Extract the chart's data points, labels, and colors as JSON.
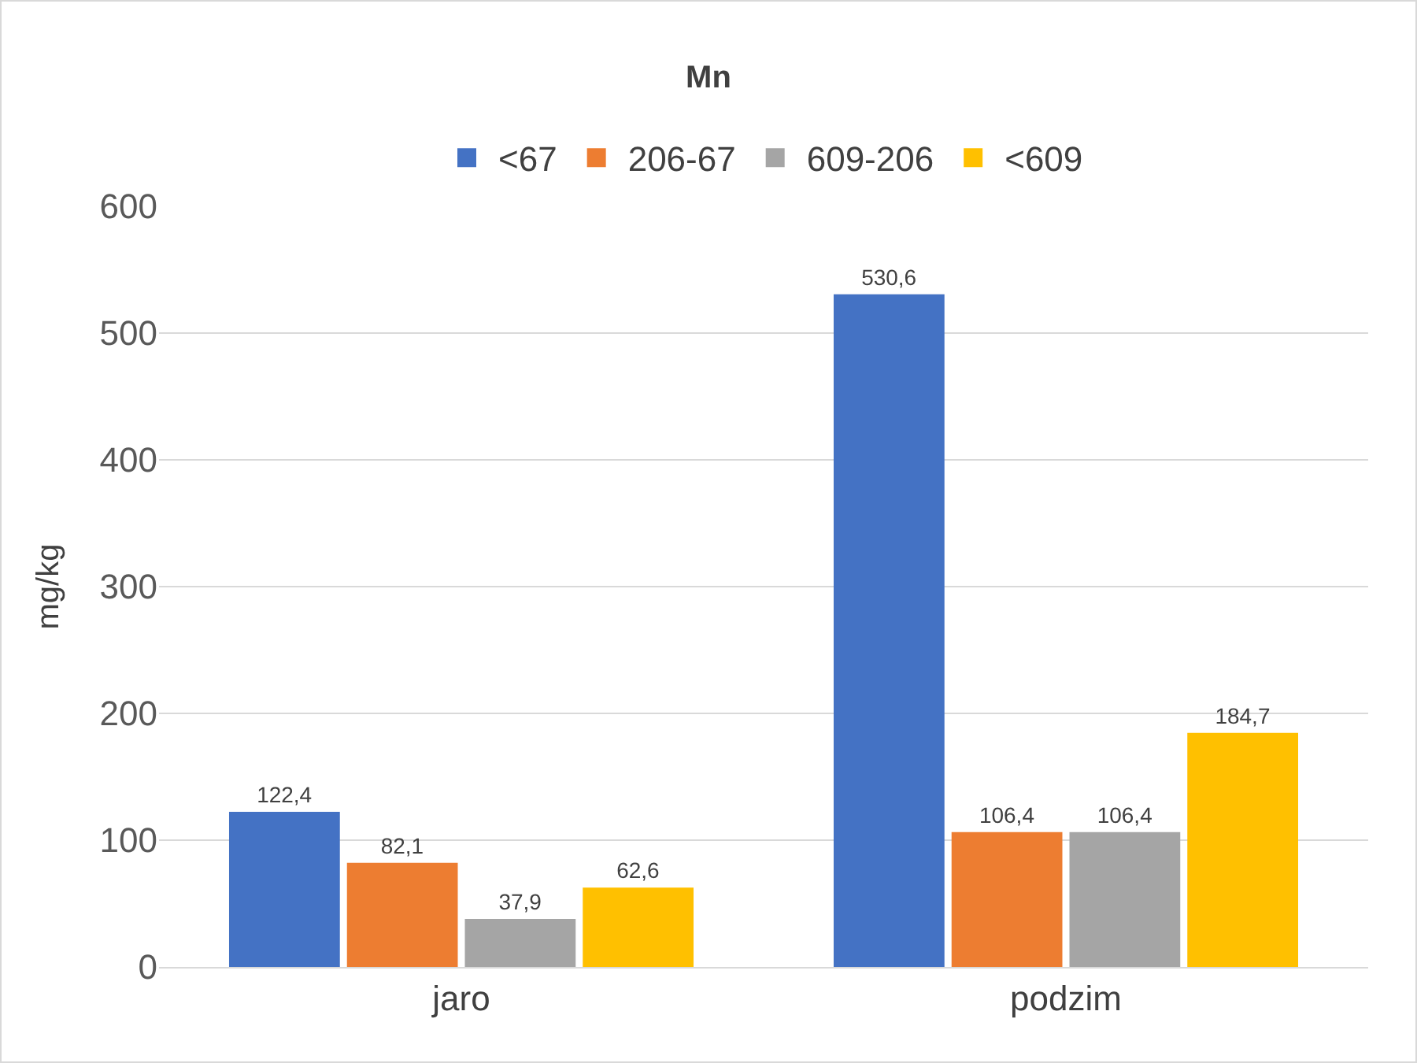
{
  "chart_data": {
    "type": "bar",
    "title": "Mn",
    "ylabel": "mg/kg",
    "categories": [
      "jaro",
      "podzim"
    ],
    "series": [
      {
        "name": "<67",
        "color": "#4472c4",
        "values": [
          122.4,
          530.6
        ],
        "value_labels": [
          "122,4",
          "530,6"
        ]
      },
      {
        "name": "206-67",
        "color": "#ed7d31",
        "values": [
          82.1,
          106.4
        ],
        "value_labels": [
          "82,1",
          "106,4"
        ]
      },
      {
        "name": "609-206",
        "color": "#a5a5a5",
        "values": [
          37.9,
          106.4
        ],
        "value_labels": [
          "37,9",
          "106,4"
        ]
      },
      {
        "name": "<609",
        "color": "#ffc000",
        "values": [
          62.6,
          184.7
        ],
        "value_labels": [
          "62,6",
          "184,7"
        ]
      }
    ],
    "ylim": [
      0,
      600
    ],
    "yticks": [
      0,
      100,
      200,
      300,
      400,
      500,
      600
    ],
    "grid": "y",
    "legend": "top"
  }
}
